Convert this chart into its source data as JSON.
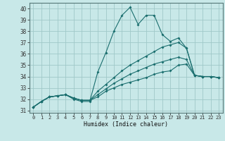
{
  "bg_color": "#c8e8e8",
  "grid_color": "#a0c8c8",
  "line_color": "#1a6e6e",
  "xlabel": "Humidex (Indice chaleur)",
  "x_ticks": [
    0,
    1,
    2,
    3,
    4,
    5,
    6,
    7,
    8,
    9,
    10,
    11,
    12,
    13,
    14,
    15,
    16,
    17,
    18,
    19,
    20,
    21,
    22,
    23
  ],
  "ylim": [
    30.8,
    40.5
  ],
  "yticks": [
    31,
    32,
    33,
    34,
    35,
    36,
    37,
    38,
    39,
    40
  ],
  "series": [
    [
      31.3,
      31.8,
      32.2,
      32.3,
      32.4,
      32.0,
      31.8,
      31.8,
      34.4,
      36.1,
      38.0,
      39.4,
      40.1,
      38.6,
      39.4,
      39.4,
      37.7,
      37.1,
      37.4,
      36.5,
      34.1,
      34.0,
      34.0,
      33.9
    ],
    [
      31.3,
      31.8,
      32.2,
      32.3,
      32.4,
      32.1,
      31.9,
      31.9,
      32.7,
      33.3,
      33.9,
      34.5,
      35.0,
      35.4,
      35.8,
      36.2,
      36.6,
      36.8,
      37.0,
      36.5,
      34.1,
      34.0,
      34.0,
      33.9
    ],
    [
      31.3,
      31.8,
      32.2,
      32.3,
      32.4,
      32.1,
      31.9,
      31.9,
      32.4,
      32.9,
      33.4,
      33.8,
      34.2,
      34.5,
      34.8,
      35.1,
      35.3,
      35.5,
      35.7,
      35.5,
      34.1,
      34.0,
      34.0,
      33.9
    ],
    [
      31.3,
      31.8,
      32.2,
      32.3,
      32.4,
      32.1,
      31.9,
      31.9,
      32.2,
      32.7,
      33.0,
      33.3,
      33.5,
      33.7,
      33.9,
      34.2,
      34.4,
      34.5,
      35.0,
      35.1,
      34.1,
      34.0,
      34.0,
      33.9
    ]
  ]
}
